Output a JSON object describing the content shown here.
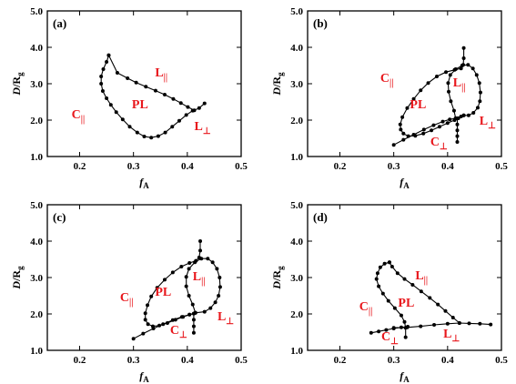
{
  "colors": {
    "curve": "#000000",
    "region_label": "#e8171c",
    "frame": "#000000"
  },
  "chart_data": [
    {
      "type": "line",
      "panel_label": "(a)",
      "xlabel_main": "f",
      "xlabel_sub": "A",
      "ylabel_main": "D",
      "ylabel_rest": "/R",
      "ylabel_sub": "g",
      "xlim": [
        0.14,
        0.5
      ],
      "ylim": [
        1.0,
        5.0
      ],
      "xticks": [
        "0.2",
        "0.3",
        "0.4",
        "0.5"
      ],
      "xtick_values": [
        0.2,
        0.3,
        0.4,
        0.5
      ],
      "yticks": [
        "1.0",
        "2.0",
        "3.0",
        "4.0",
        "5.0"
      ],
      "ytick_values": [
        1.0,
        2.0,
        3.0,
        4.0,
        5.0
      ],
      "grid": false,
      "series": [
        {
          "x": [
            0.254,
            0.25,
            0.244,
            0.24,
            0.24,
            0.243,
            0.25,
            0.258,
            0.268,
            0.28,
            0.293,
            0.307,
            0.32,
            0.333,
            0.346,
            0.359,
            0.372,
            0.385,
            0.398,
            0.41
          ],
          "y": [
            3.78,
            3.6,
            3.4,
            3.2,
            3.0,
            2.8,
            2.6,
            2.42,
            2.22,
            2.02,
            1.82,
            1.66,
            1.55,
            1.52,
            1.56,
            1.66,
            1.82,
            1.98,
            2.14,
            2.26
          ]
        },
        {
          "x": [
            0.254,
            0.27,
            0.289,
            0.305,
            0.323,
            0.341,
            0.358,
            0.374,
            0.388,
            0.401,
            0.413,
            0.422,
            0.432
          ],
          "y": [
            3.78,
            3.3,
            3.15,
            3.03,
            2.92,
            2.81,
            2.7,
            2.58,
            2.47,
            2.36,
            2.27,
            2.33,
            2.46
          ]
        }
      ],
      "regions": [
        {
          "main": "C",
          "sub": "||",
          "x": 0.185,
          "y": 2.05
        },
        {
          "main": "PL",
          "sub": "",
          "x": 0.297,
          "y": 2.33
        },
        {
          "main": "L",
          "sub": "||",
          "x": 0.34,
          "y": 3.2
        },
        {
          "main": "L",
          "sub": "⊥",
          "x": 0.413,
          "y": 1.72
        }
      ]
    },
    {
      "type": "line",
      "panel_label": "(b)",
      "xlabel_main": "f",
      "xlabel_sub": "A",
      "ylabel_main": "D",
      "ylabel_rest": "/R",
      "ylabel_sub": "g",
      "xlim": [
        0.14,
        0.5
      ],
      "ylim": [
        1.0,
        5.0
      ],
      "xticks": [
        "0.2",
        "0.3",
        "0.4",
        "0.5"
      ],
      "xtick_values": [
        0.2,
        0.3,
        0.4,
        0.5
      ],
      "yticks": [
        "1.0",
        "2.0",
        "3.0",
        "4.0",
        "5.0"
      ],
      "ytick_values": [
        1.0,
        2.0,
        3.0,
        4.0,
        5.0
      ],
      "grid": false,
      "series": [
        {
          "x": [
            0.43,
            0.43,
            0.429,
            0.425,
            0.413,
            0.397,
            0.38,
            0.364,
            0.35,
            0.337,
            0.325,
            0.316,
            0.312,
            0.313,
            0.318,
            0.327,
            0.34,
            0.355,
            0.37,
            0.385,
            0.4,
            0.413,
            0.42
          ],
          "y": [
            3.98,
            3.7,
            3.52,
            3.42,
            3.38,
            3.32,
            3.2,
            3.02,
            2.82,
            2.58,
            2.33,
            2.08,
            1.88,
            1.74,
            1.63,
            1.56,
            1.57,
            1.63,
            1.72,
            1.82,
            1.92,
            2.0,
            2.05
          ]
        },
        {
          "x": [
            0.3,
            0.318,
            0.337,
            0.356,
            0.374,
            0.391,
            0.404,
            0.415,
            0.425,
            0.43
          ],
          "y": [
            1.32,
            1.46,
            1.6,
            1.74,
            1.86,
            1.96,
            2.02,
            2.05,
            2.1,
            2.13
          ]
        },
        {
          "x": [
            0.415,
            0.412,
            0.406,
            0.402,
            0.401,
            0.405,
            0.415,
            0.427,
            0.438,
            0.447,
            0.454,
            0.459,
            0.461,
            0.46,
            0.456,
            0.448,
            0.439,
            0.43
          ],
          "y": [
            2.05,
            2.26,
            2.52,
            2.78,
            3.02,
            3.24,
            3.4,
            3.5,
            3.52,
            3.42,
            3.24,
            3.02,
            2.76,
            2.52,
            2.34,
            2.2,
            2.13,
            2.13
          ]
        },
        {
          "x": [
            0.418,
            0.418,
            0.418,
            0.418,
            0.418
          ],
          "y": [
            2.05,
            1.88,
            1.72,
            1.56,
            1.4
          ]
        }
      ],
      "regions": [
        {
          "main": "C",
          "sub": "||",
          "x": 0.275,
          "y": 3.05
        },
        {
          "main": "PL",
          "sub": "",
          "x": 0.33,
          "y": 2.33
        },
        {
          "main": "L",
          "sub": "||",
          "x": 0.41,
          "y": 2.93
        },
        {
          "main": "L",
          "sub": "⊥",
          "x": 0.459,
          "y": 1.88
        },
        {
          "main": "C",
          "sub": "⊥",
          "x": 0.368,
          "y": 1.3
        }
      ]
    },
    {
      "type": "line",
      "panel_label": "(c)",
      "xlabel_main": "f",
      "xlabel_sub": "A",
      "ylabel_main": "D",
      "ylabel_rest": "/R",
      "ylabel_sub": "g",
      "xlim": [
        0.14,
        0.5
      ],
      "ylim": [
        1.0,
        5.0
      ],
      "xticks": [
        "0.2",
        "0.3",
        "0.4",
        "0.5"
      ],
      "xtick_values": [
        0.2,
        0.3,
        0.4,
        0.5
      ],
      "yticks": [
        "1.0",
        "2.0",
        "3.0",
        "4.0",
        "5.0"
      ],
      "ytick_values": [
        1.0,
        2.0,
        3.0,
        4.0,
        5.0
      ],
      "grid": false,
      "series": [
        {
          "x": [
            0.424,
            0.424,
            0.422,
            0.416,
            0.404,
            0.389,
            0.373,
            0.358,
            0.344,
            0.333,
            0.326,
            0.322,
            0.322,
            0.327,
            0.336,
            0.348,
            0.363,
            0.378,
            0.392,
            0.404,
            0.412
          ],
          "y": [
            4.0,
            3.74,
            3.55,
            3.46,
            3.4,
            3.3,
            3.14,
            2.94,
            2.72,
            2.48,
            2.24,
            2.02,
            1.84,
            1.72,
            1.66,
            1.68,
            1.75,
            1.84,
            1.92,
            1.98,
            2.01
          ]
        },
        {
          "x": [
            0.3,
            0.318,
            0.337,
            0.355,
            0.373,
            0.39,
            0.404,
            0.415
          ],
          "y": [
            1.32,
            1.46,
            1.6,
            1.72,
            1.83,
            1.92,
            1.98,
            2.03
          ]
        },
        {
          "x": [
            0.415,
            0.41,
            0.403,
            0.398,
            0.398,
            0.403,
            0.414,
            0.426,
            0.438,
            0.447,
            0.455,
            0.46,
            0.461,
            0.458,
            0.452,
            0.443,
            0.432,
            0.415
          ],
          "y": [
            2.03,
            2.26,
            2.5,
            2.76,
            3.02,
            3.24,
            3.42,
            3.52,
            3.52,
            3.42,
            3.24,
            3.0,
            2.74,
            2.5,
            2.32,
            2.16,
            2.06,
            2.03
          ]
        },
        {
          "x": [
            0.412,
            0.412,
            0.412,
            0.412
          ],
          "y": [
            2.01,
            1.84,
            1.66,
            1.48
          ]
        }
      ],
      "regions": [
        {
          "main": "C",
          "sub": "||",
          "x": 0.275,
          "y": 2.35
        },
        {
          "main": "PL",
          "sub": "",
          "x": 0.34,
          "y": 2.5
        },
        {
          "main": "L",
          "sub": "||",
          "x": 0.41,
          "y": 2.93
        },
        {
          "main": "L",
          "sub": "⊥",
          "x": 0.456,
          "y": 1.83
        },
        {
          "main": "C",
          "sub": "⊥",
          "x": 0.368,
          "y": 1.45
        }
      ]
    },
    {
      "type": "line",
      "panel_label": "(d)",
      "xlabel_main": "f",
      "xlabel_sub": "A",
      "ylabel_main": "D",
      "ylabel_rest": "/R",
      "ylabel_sub": "g",
      "xlim": [
        0.14,
        0.5
      ],
      "ylim": [
        1.0,
        5.0
      ],
      "xticks": [
        "0.2",
        "0.3",
        "0.4",
        "0.5"
      ],
      "xtick_values": [
        0.2,
        0.3,
        0.4,
        0.5
      ],
      "yticks": [
        "1.0",
        "2.0",
        "3.0",
        "4.0",
        "5.0"
      ],
      "ytick_values": [
        1.0,
        2.0,
        3.0,
        4.0,
        5.0
      ],
      "grid": false,
      "series": [
        {
          "x": [
            0.292,
            0.283,
            0.275,
            0.27,
            0.268,
            0.272,
            0.28,
            0.29,
            0.302,
            0.314,
            0.32,
            0.322,
            0.322
          ],
          "y": [
            3.42,
            3.38,
            3.28,
            3.12,
            2.96,
            2.76,
            2.56,
            2.36,
            2.16,
            1.96,
            1.78,
            1.62,
            1.36
          ]
        },
        {
          "x": [
            0.292,
            0.297,
            0.307,
            0.32,
            0.335,
            0.351,
            0.367,
            0.382,
            0.396,
            0.41,
            0.422
          ],
          "y": [
            3.42,
            3.3,
            3.12,
            2.96,
            2.8,
            2.62,
            2.44,
            2.26,
            2.08,
            1.9,
            1.75
          ]
        },
        {
          "x": [
            0.258,
            0.272,
            0.286,
            0.3,
            0.314,
            0.326
          ],
          "y": [
            1.48,
            1.52,
            1.56,
            1.6,
            1.63,
            1.65
          ]
        },
        {
          "x": [
            0.3,
            0.325,
            0.35,
            0.375,
            0.4,
            0.422,
            0.44,
            0.46,
            0.48
          ],
          "y": [
            1.62,
            1.63,
            1.66,
            1.7,
            1.73,
            1.75,
            1.74,
            1.73,
            1.71
          ]
        }
      ],
      "regions": [
        {
          "main": "C",
          "sub": "||",
          "x": 0.236,
          "y": 2.1
        },
        {
          "main": "PL",
          "sub": "",
          "x": 0.308,
          "y": 2.2
        },
        {
          "main": "L",
          "sub": "||",
          "x": 0.34,
          "y": 2.95
        },
        {
          "main": "L",
          "sub": "⊥",
          "x": 0.392,
          "y": 1.35
        },
        {
          "main": "C",
          "sub": "⊥",
          "x": 0.277,
          "y": 1.28
        }
      ]
    }
  ]
}
